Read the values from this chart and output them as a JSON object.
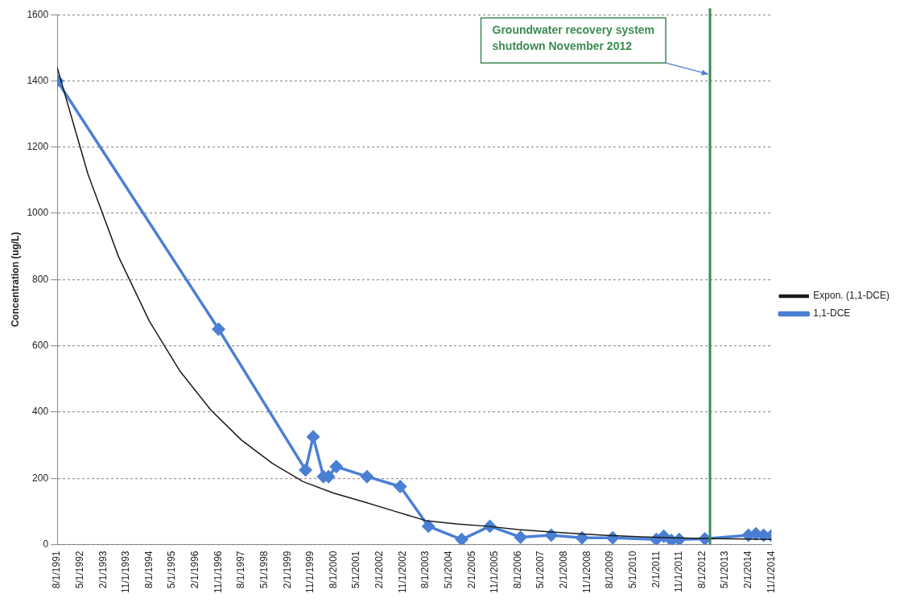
{
  "chart_data": {
    "type": "line",
    "ylabel": "Concentration (ug/L)",
    "xlim": [
      "1991-08-01",
      "2014-11-01"
    ],
    "xticks": [
      {
        "value": "1991-08-01",
        "label": "8/1/1991"
      },
      {
        "value": "1992-05-01",
        "label": "5/1/1992"
      },
      {
        "value": "1993-02-01",
        "label": "2/1/1993"
      },
      {
        "value": "1993-11-01",
        "label": "11/1/1993"
      },
      {
        "value": "1994-08-01",
        "label": "8/1/1994"
      },
      {
        "value": "1995-05-01",
        "label": "5/1/1995"
      },
      {
        "value": "1996-02-01",
        "label": "2/1/1996"
      },
      {
        "value": "1996-11-01",
        "label": "11/1/1996"
      },
      {
        "value": "1997-08-01",
        "label": "8/1/1997"
      },
      {
        "value": "1998-05-01",
        "label": "5/1/1998"
      },
      {
        "value": "1999-02-01",
        "label": "2/1/1999"
      },
      {
        "value": "1999-11-01",
        "label": "11/1/1999"
      },
      {
        "value": "2000-08-01",
        "label": "8/1/2000"
      },
      {
        "value": "2001-05-01",
        "label": "5/1/2001"
      },
      {
        "value": "2002-02-01",
        "label": "2/1/2002"
      },
      {
        "value": "2002-11-01",
        "label": "11/1/2002"
      },
      {
        "value": "2003-08-01",
        "label": "8/1/2003"
      },
      {
        "value": "2004-05-01",
        "label": "5/1/2004"
      },
      {
        "value": "2005-02-01",
        "label": "2/1/2005"
      },
      {
        "value": "2005-11-01",
        "label": "11/1/2005"
      },
      {
        "value": "2006-08-01",
        "label": "8/1/2006"
      },
      {
        "value": "2007-05-01",
        "label": "5/1/2007"
      },
      {
        "value": "2008-02-01",
        "label": "2/1/2008"
      },
      {
        "value": "2008-11-01",
        "label": "11/1/2008"
      },
      {
        "value": "2009-08-01",
        "label": "8/1/2009"
      },
      {
        "value": "2010-05-01",
        "label": "5/1/2010"
      },
      {
        "value": "2011-02-01",
        "label": "2/1/2011"
      },
      {
        "value": "2011-11-01",
        "label": "11/1/2011"
      },
      {
        "value": "2012-08-01",
        "label": "8/1/2012"
      },
      {
        "value": "2013-05-01",
        "label": "5/1/2013"
      },
      {
        "value": "2014-02-01",
        "label": "2/1/2014"
      },
      {
        "value": "2014-11-01",
        "label": "11/1/2014"
      }
    ],
    "ylim": [
      0,
      1600
    ],
    "yticks": [
      0,
      200,
      400,
      600,
      800,
      1000,
      1200,
      1400,
      1600
    ],
    "grid": "y",
    "legend": "right",
    "series": [
      {
        "name": "1,1-DCE",
        "color": "#4a7fd4",
        "marker": "diamond",
        "x": [
          "1991-08",
          "1996-11",
          "1999-09",
          "1999-12",
          "2000-04",
          "2000-06",
          "2000-09",
          "2001-09",
          "2002-10",
          "2003-09",
          "2004-10",
          "2005-09",
          "2006-09",
          "2007-09",
          "2008-09",
          "2009-09",
          "2011-02",
          "2011-05",
          "2011-08",
          "2011-11",
          "2012-09",
          "2014-02",
          "2014-05",
          "2014-08",
          "2014-11"
        ],
        "values": [
          1400,
          650,
          225,
          325,
          205,
          205,
          235,
          205,
          175,
          55,
          15,
          55,
          22,
          28,
          20,
          20,
          15,
          25,
          12,
          15,
          17,
          28,
          32,
          28,
          27
        ]
      },
      {
        "name": "Expon. (1,1-DCE)",
        "color": "#1a1a1a",
        "marker": "none",
        "x": [
          "1991-08",
          "1992-08",
          "1993-08",
          "1994-08",
          "1995-08",
          "1996-08",
          "1997-08",
          "1998-08",
          "1999-08",
          "2000-08",
          "2001-08",
          "2002-08",
          "2003-08",
          "2004-08",
          "2005-08",
          "2006-08",
          "2007-08",
          "2008-08",
          "2009-08",
          "2010-08",
          "2011-08",
          "2012-08",
          "2014-11"
        ],
        "values": [
          1440,
          1118,
          868,
          674,
          523,
          406,
          315,
          245,
          190,
          155,
          128,
          100,
          72,
          62,
          55,
          45,
          38,
          32,
          27,
          23,
          20,
          18,
          15
        ]
      }
    ],
    "ref_lines": [
      {
        "axis": "x",
        "value": "2012-11",
        "label": "Groundwater recovery system shutdown November 2012",
        "color": "#3a8a52"
      }
    ]
  }
}
